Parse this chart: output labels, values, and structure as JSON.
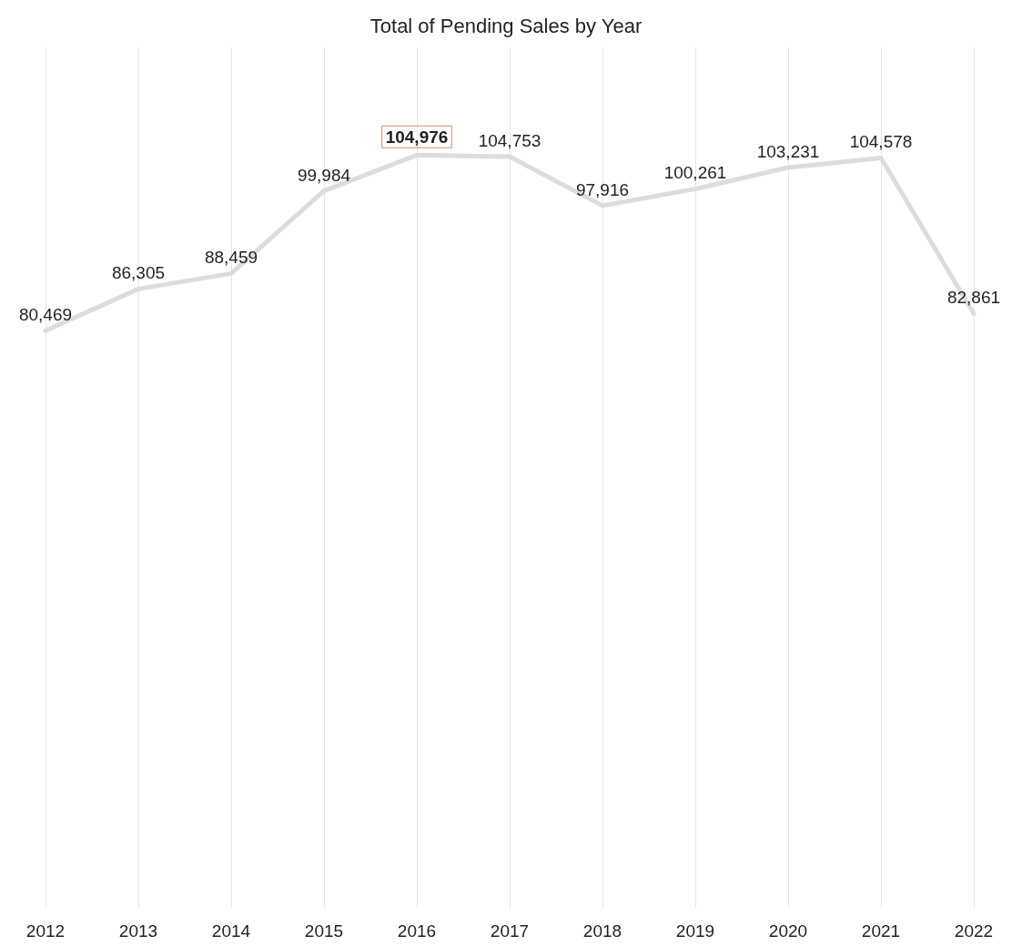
{
  "chart_data": {
    "type": "line",
    "title": "Total of Pending Sales by Year",
    "categories": [
      "2012",
      "2013",
      "2014",
      "2015",
      "2016",
      "2017",
      "2018",
      "2019",
      "2020",
      "2021",
      "2022"
    ],
    "series": [
      {
        "color": "#dddddd",
        "values": [
          80469,
          86305,
          88459,
          99984,
          104976,
          104753,
          97916,
          100261,
          103231,
          104578,
          82861
        ],
        "value_labels": [
          "80,469",
          "86,305",
          "88,459",
          "99,984",
          "104,976",
          "104,753",
          "97,916",
          "100,261",
          "103,231",
          "104,578",
          "82,861"
        ]
      }
    ],
    "grid": "x",
    "marker": "none",
    "line_style": "solid",
    "tick_labels": "x"
  }
}
